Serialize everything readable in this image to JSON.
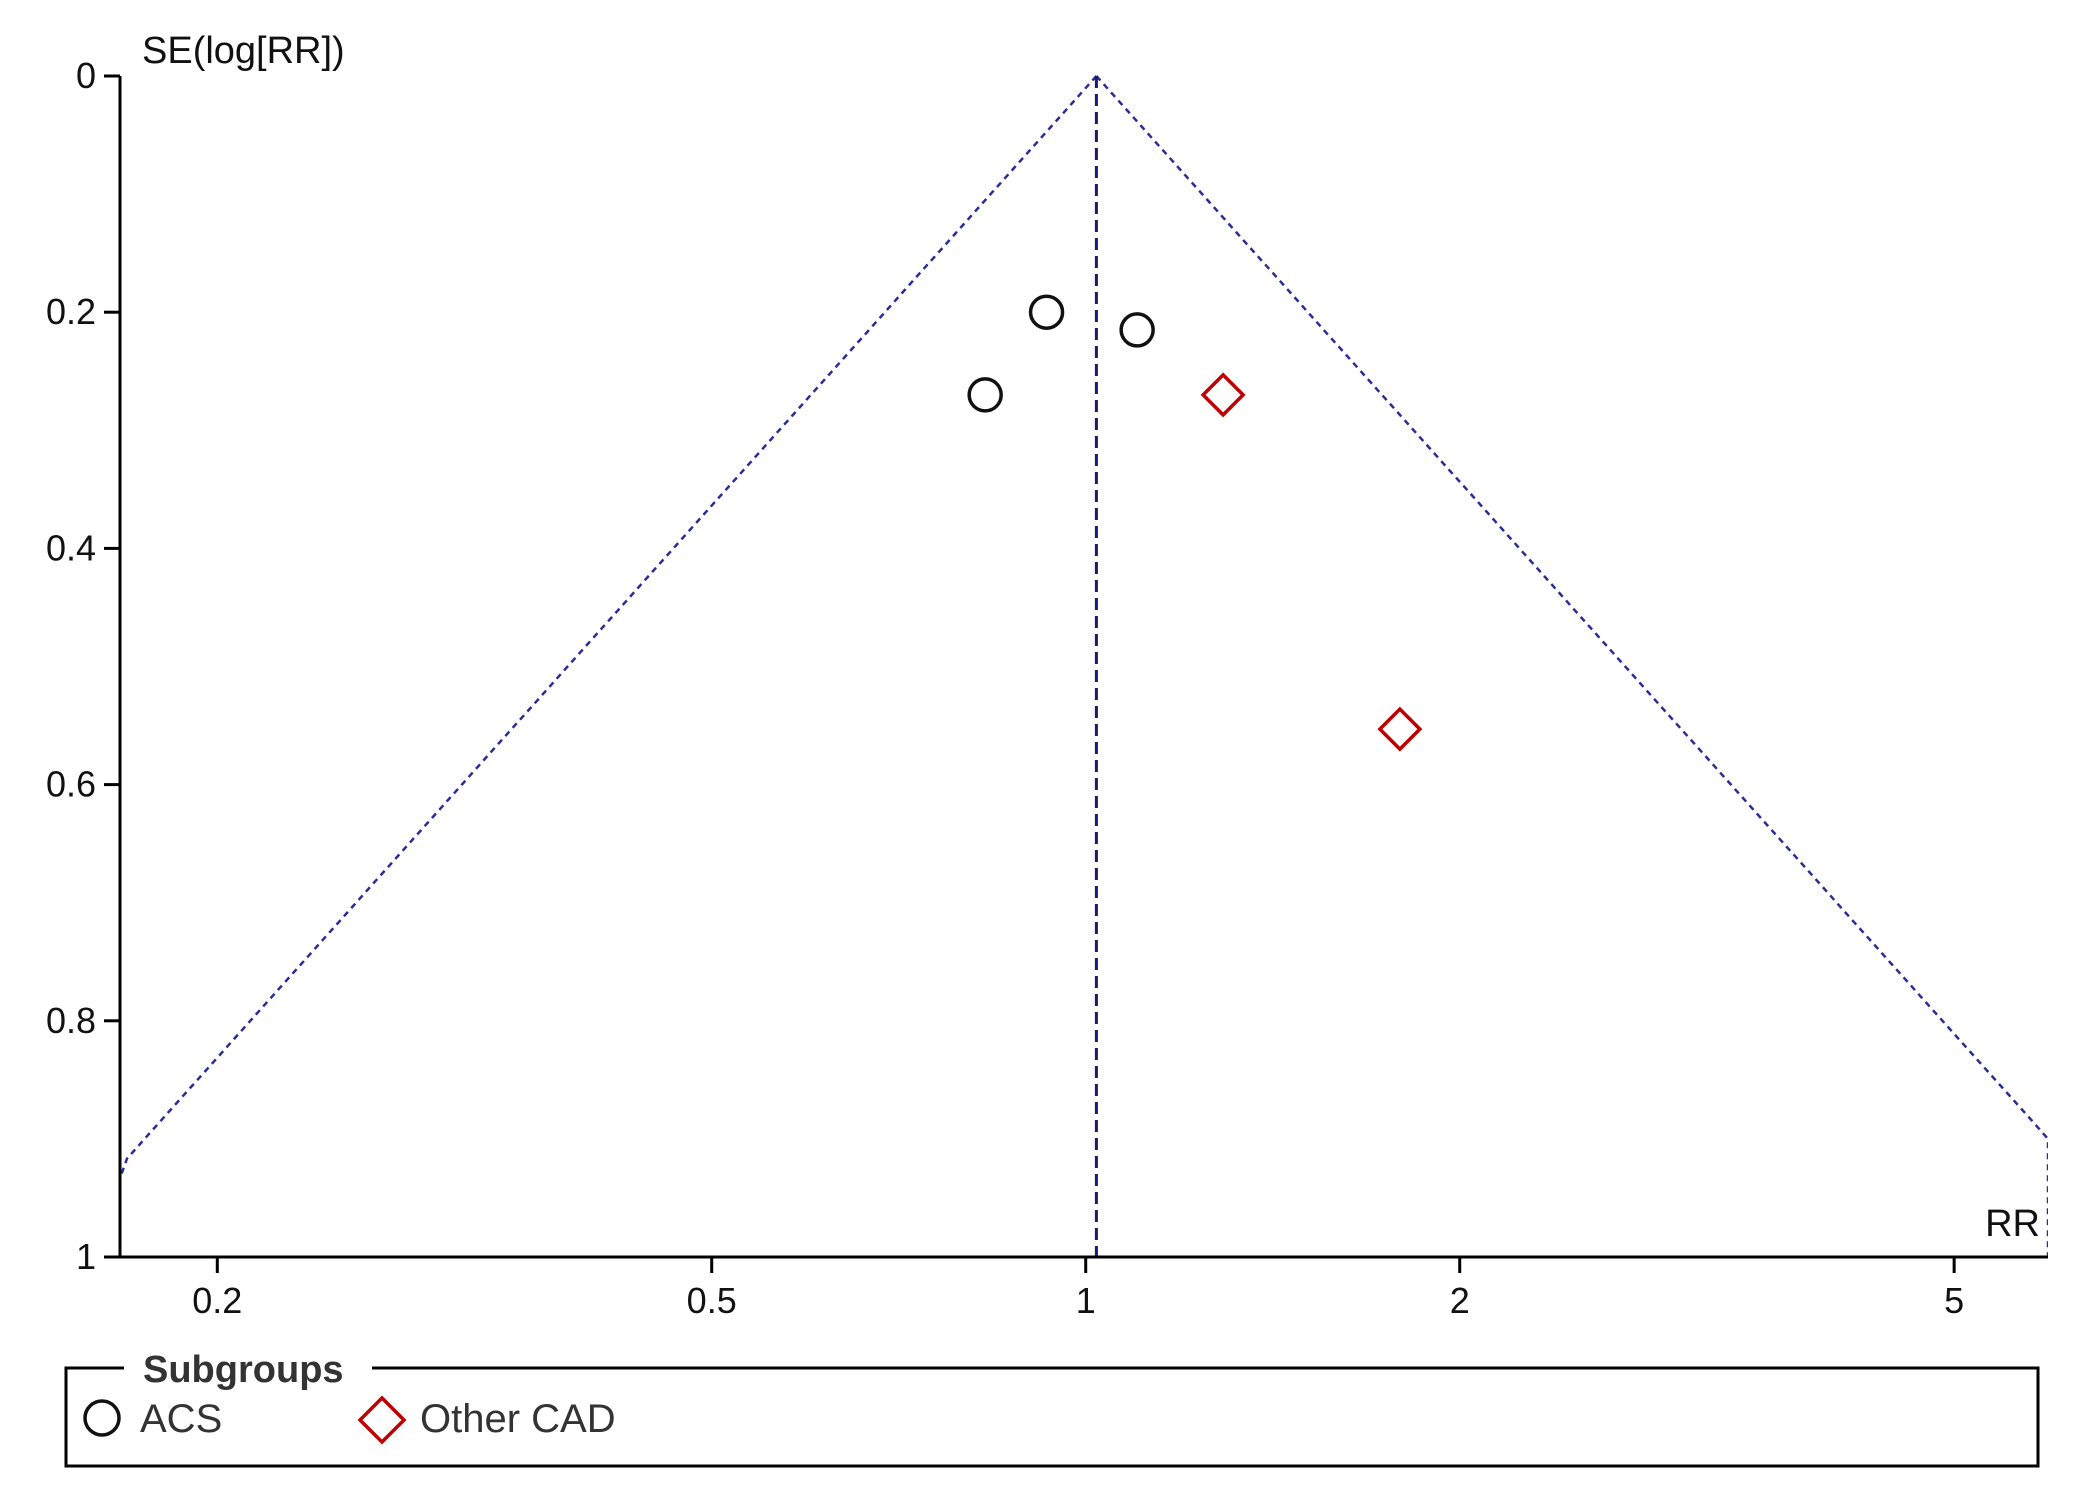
{
  "chart_data": {
    "type": "scatter",
    "subtype": "funnel-plot",
    "title": "",
    "xlabel": "RR",
    "ylabel": "SE(log[RR])",
    "x_scale": "log",
    "x_ticks": [
      0.2,
      0.5,
      1,
      2,
      5
    ],
    "x_tick_labels": [
      "0.2",
      "0.5",
      "1",
      "2",
      "5"
    ],
    "xlim": [
      0.167,
      5.95
    ],
    "y_reversed": true,
    "y_ticks": [
      0,
      0.2,
      0.4,
      0.6,
      0.8,
      1
    ],
    "y_tick_labels": [
      "0",
      "0.2",
      "0.4",
      "0.6",
      "0.8",
      "1"
    ],
    "ylim": [
      0,
      1
    ],
    "pooled_estimate": 1.02,
    "funnel_limits": "95% pseudo-confidence limits (dashed)",
    "grid": false,
    "legend": {
      "title": "Subgroups",
      "placement": "bottom",
      "entries": [
        "ACS",
        "Other CAD"
      ]
    },
    "series": [
      {
        "name": "ACS",
        "marker": "circle",
        "color": "#111111",
        "points": [
          {
            "x": 0.83,
            "y": 0.27
          },
          {
            "x": 0.93,
            "y": 0.2
          },
          {
            "x": 1.1,
            "y": 0.215
          }
        ]
      },
      {
        "name": "Other CAD",
        "marker": "diamond",
        "color": "#c00000",
        "points": [
          {
            "x": 1.29,
            "y": 0.27
          },
          {
            "x": 1.79,
            "y": 0.553
          }
        ]
      }
    ],
    "colors": {
      "axis": "#000000",
      "funnel_lines": "#2b2b9a",
      "pooled_line": "#1a1a6e"
    }
  }
}
